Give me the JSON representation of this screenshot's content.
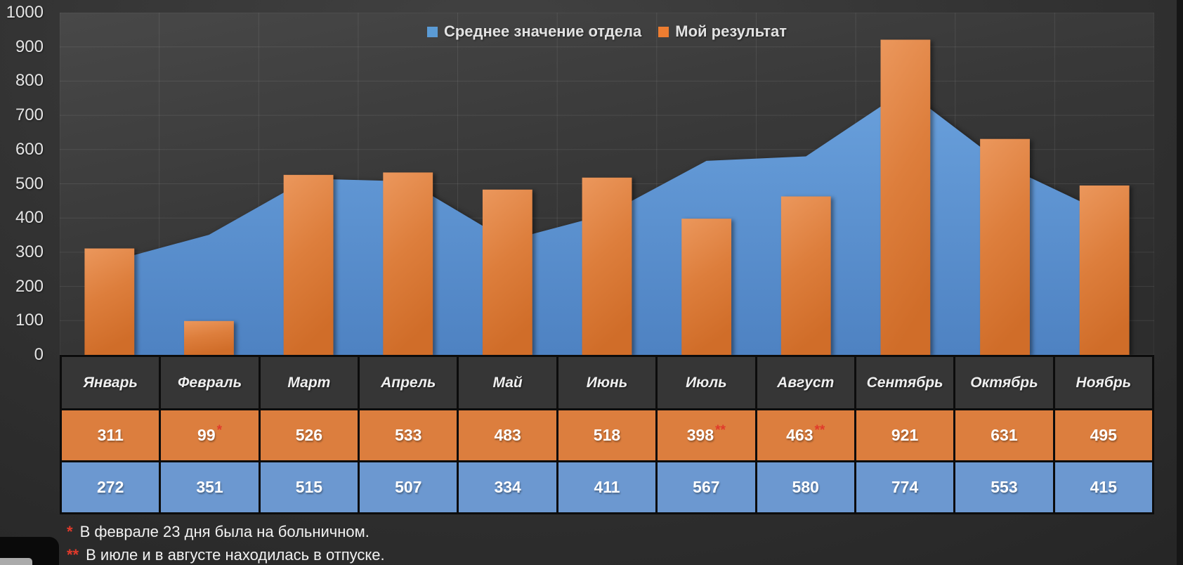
{
  "chart_data": {
    "type": "combo",
    "title": "",
    "categories": [
      "Январь",
      "Февраль",
      "Март",
      "Апрель",
      "Май",
      "Июнь",
      "Июль",
      "Август",
      "Сентябрь",
      "Октябрь",
      "Ноябрь"
    ],
    "series": [
      {
        "name": "Среднее значение отдела",
        "type": "area",
        "color": "#5b9bd5",
        "values": [
          272,
          351,
          515,
          507,
          334,
          411,
          567,
          580,
          774,
          553,
          415
        ]
      },
      {
        "name": "Мой результат",
        "type": "bar",
        "color": "#ed7d31",
        "values": [
          311,
          99,
          526,
          533,
          483,
          518,
          398,
          463,
          921,
          631,
          495
        ]
      }
    ],
    "value_marks": [
      "",
      "*",
      "",
      "",
      "",
      "",
      "**",
      "**",
      "",
      "",
      ""
    ],
    "y_axis": {
      "min": 0,
      "max": 1000,
      "step": 100
    },
    "grid": true,
    "legend_position": "top-center",
    "data_table_attached": true
  },
  "footnotes": [
    {
      "mark": "*",
      "text": "В феврале 23 дня была на больничном."
    },
    {
      "mark": "**",
      "text": "В июле и в августе находилась в отпуске."
    }
  ],
  "colors": {
    "background_dark": "#2e2e2e",
    "plot_fill_light": "#424242",
    "bar_orange": "#dc7e3e",
    "area_blue": "#5b8fce",
    "table_orange": "#dc7e3e",
    "table_blue": "#6c98d0",
    "note_red": "#e03a2b",
    "text_light": "#eeeeee"
  }
}
